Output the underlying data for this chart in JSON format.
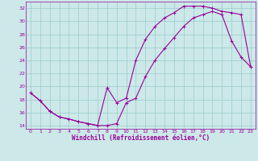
{
  "xlabel": "Windchill (Refroidissement éolien,°C)",
  "bg_color": "#cce8e8",
  "line_color": "#990099",
  "grid_color": "#99cccc",
  "xlim": [
    -0.5,
    23.5
  ],
  "ylim": [
    13.5,
    33.0
  ],
  "xticks": [
    0,
    1,
    2,
    3,
    4,
    5,
    6,
    7,
    8,
    9,
    10,
    11,
    12,
    13,
    14,
    15,
    16,
    17,
    18,
    19,
    20,
    21,
    22,
    23
  ],
  "yticks": [
    14,
    16,
    18,
    20,
    22,
    24,
    26,
    28,
    30,
    32
  ],
  "line1_x": [
    0,
    1,
    2,
    3,
    4,
    5,
    6,
    7,
    8,
    9,
    10,
    11,
    12,
    13,
    14,
    15,
    16,
    17,
    18,
    19,
    20,
    21,
    22,
    23
  ],
  "line1_y": [
    19.0,
    17.8,
    16.2,
    15.3,
    15.0,
    14.6,
    14.3,
    14.0,
    14.0,
    14.3,
    17.5,
    18.2,
    21.5,
    24.0,
    25.8,
    27.5,
    29.2,
    30.5,
    31.0,
    31.5,
    31.0,
    27.0,
    24.5,
    23.0
  ],
  "line2_x": [
    0,
    1,
    2,
    3,
    4,
    5,
    6,
    7,
    8,
    9,
    10,
    11,
    12,
    13,
    14,
    15,
    16,
    17,
    18,
    19,
    20,
    21,
    22,
    23
  ],
  "line2_y": [
    19.0,
    17.8,
    16.2,
    15.3,
    15.0,
    14.6,
    14.3,
    14.0,
    19.8,
    17.5,
    18.2,
    24.0,
    27.2,
    29.2,
    30.5,
    31.3,
    32.3,
    32.3,
    32.3,
    32.0,
    31.5,
    31.3,
    31.0,
    23.0
  ]
}
